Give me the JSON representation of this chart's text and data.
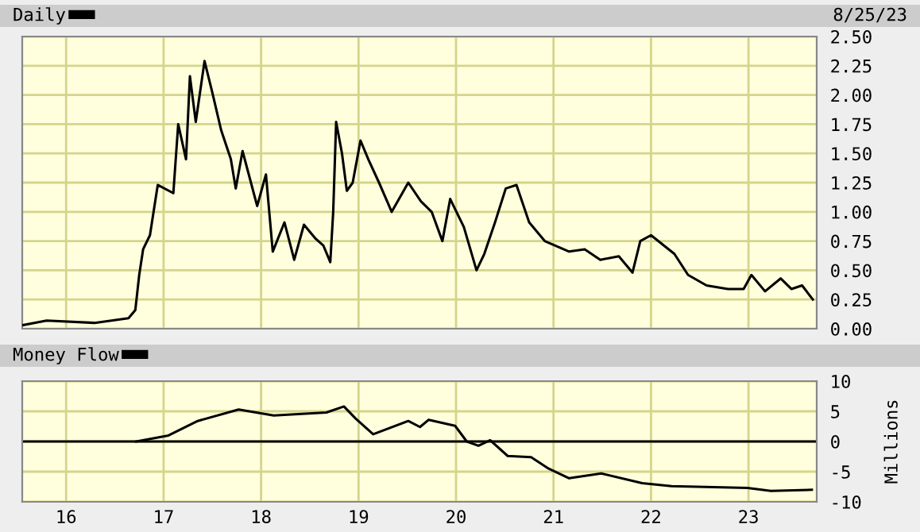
{
  "chart_data": [
    {
      "type": "line",
      "annotations": [
        "8/25/23"
      ],
      "legend": "top left",
      "grid": true,
      "tick_labels": "y",
      "xlim": [
        2015.55,
        2023.7
      ],
      "xticks": [
        {
          "value": 2016,
          "label": null
        },
        {
          "value": 2017,
          "label": null
        },
        {
          "value": 2018,
          "label": null
        },
        {
          "value": 2019,
          "label": null
        },
        {
          "value": 2020,
          "label": null
        },
        {
          "value": 2021,
          "label": null
        },
        {
          "value": 2022,
          "label": null
        },
        {
          "value": 2023,
          "label": null
        }
      ],
      "ylim": [
        0,
        2.5
      ],
      "yticks": [
        {
          "value": 0,
          "label": "0.00"
        },
        {
          "value": 0.25,
          "label": "0.25"
        },
        {
          "value": 0.5,
          "label": "0.50"
        },
        {
          "value": 0.75,
          "label": "0.75"
        },
        {
          "value": 1,
          "label": "1.00"
        },
        {
          "value": 1.25,
          "label": "1.25"
        },
        {
          "value": 1.5,
          "label": "1.50"
        },
        {
          "value": 1.75,
          "label": "1.75"
        },
        {
          "value": 2,
          "label": "2.00"
        },
        {
          "value": 2.25,
          "label": "2.25"
        },
        {
          "value": 2.5,
          "label": "2.50"
        }
      ],
      "series": [
        {
          "name": "Daily",
          "color": "#000000",
          "x": [
            2015.55,
            2015.8,
            2016.29,
            2016.64,
            2016.71,
            2016.75,
            2016.79,
            2016.86,
            2016.94,
            2017.1,
            2017.15,
            2017.23,
            2017.27,
            2017.33,
            2017.42,
            2017.5,
            2017.59,
            2017.69,
            2017.74,
            2017.81,
            2017.96,
            2018.05,
            2018.12,
            2018.24,
            2018.34,
            2018.44,
            2018.56,
            2018.64,
            2018.71,
            2018.74,
            2018.77,
            2018.83,
            2018.88,
            2018.94,
            2019.02,
            2019.1,
            2019.21,
            2019.34,
            2019.51,
            2019.64,
            2019.75,
            2019.86,
            2019.94,
            2020.08,
            2020.21,
            2020.29,
            2020.4,
            2020.51,
            2020.62,
            2020.75,
            2020.91,
            2021.16,
            2021.32,
            2021.48,
            2021.67,
            2021.81,
            2021.89,
            2022.0,
            2022.24,
            2022.38,
            2022.57,
            2022.79,
            2022.95,
            2023.03,
            2023.17,
            2023.33,
            2023.44,
            2023.55,
            2023.66
          ],
          "values": [
            0.03,
            0.07,
            0.05,
            0.09,
            0.16,
            0.46,
            0.68,
            0.8,
            1.23,
            1.16,
            1.75,
            1.45,
            2.16,
            1.77,
            2.29,
            2.02,
            1.7,
            1.45,
            1.2,
            1.52,
            1.05,
            1.32,
            0.66,
            0.91,
            0.59,
            0.89,
            0.77,
            0.71,
            0.57,
            1.0,
            1.77,
            1.5,
            1.18,
            1.25,
            1.61,
            1.45,
            1.25,
            1.0,
            1.25,
            1.09,
            1.0,
            0.75,
            1.11,
            0.87,
            0.5,
            0.64,
            0.91,
            1.2,
            1.23,
            0.91,
            0.75,
            0.66,
            0.68,
            0.59,
            0.62,
            0.48,
            0.75,
            0.8,
            0.64,
            0.46,
            0.37,
            0.34,
            0.34,
            0.46,
            0.32,
            0.43,
            0.34,
            0.37,
            0.25
          ]
        }
      ]
    },
    {
      "type": "line",
      "legend": "top left",
      "grid": true,
      "ylabel": "Millions",
      "xlim": [
        2015.55,
        2023.7
      ],
      "xticks": [
        {
          "value": 2016,
          "label": "16"
        },
        {
          "value": 2017,
          "label": "17"
        },
        {
          "value": 2018,
          "label": "18"
        },
        {
          "value": 2019,
          "label": "19"
        },
        {
          "value": 2020,
          "label": "20"
        },
        {
          "value": 2021,
          "label": "21"
        },
        {
          "value": 2022,
          "label": "22"
        },
        {
          "value": 2023,
          "label": "23"
        }
      ],
      "ylim": [
        -10,
        10
      ],
      "yticks": [
        -10,
        -5,
        0,
        5,
        10
      ],
      "ref_lines": [
        {
          "axis": "y",
          "value": 0,
          "color": "#000000"
        }
      ],
      "series": [
        {
          "name": "Money Flow",
          "color": "#000000",
          "x": [
            2016.72,
            2017.05,
            2017.35,
            2017.77,
            2018.13,
            2018.67,
            2018.85,
            2018.97,
            2019.15,
            2019.51,
            2019.63,
            2019.72,
            2019.99,
            2020.11,
            2020.23,
            2020.35,
            2020.53,
            2020.77,
            2020.95,
            2021.16,
            2021.49,
            2021.91,
            2022.21,
            2022.99,
            2023.23,
            2023.65
          ],
          "values": [
            0,
            1.0,
            3.4,
            5.3,
            4.3,
            4.8,
            5.8,
            3.8,
            1.2,
            3.4,
            2.4,
            3.6,
            2.6,
            0,
            -0.7,
            0.2,
            -2.4,
            -2.6,
            -4.5,
            -6.1,
            -5.3,
            -6.9,
            -7.4,
            -7.7,
            -8.2,
            -8.0
          ]
        }
      ]
    }
  ]
}
